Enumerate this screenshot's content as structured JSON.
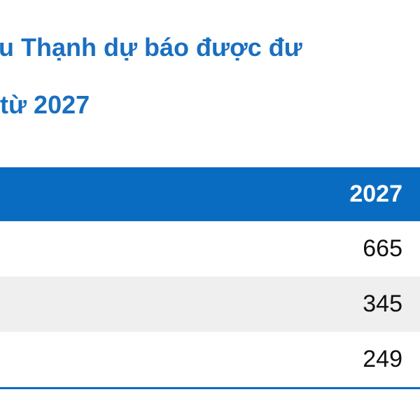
{
  "title": {
    "lines": [
      "u Thạnh dự báo được đư",
      "từ 2027"
    ]
  },
  "table": {
    "header": [
      "2027"
    ],
    "rows": [
      [
        665
      ],
      [
        345
      ],
      [
        249
      ]
    ]
  }
}
